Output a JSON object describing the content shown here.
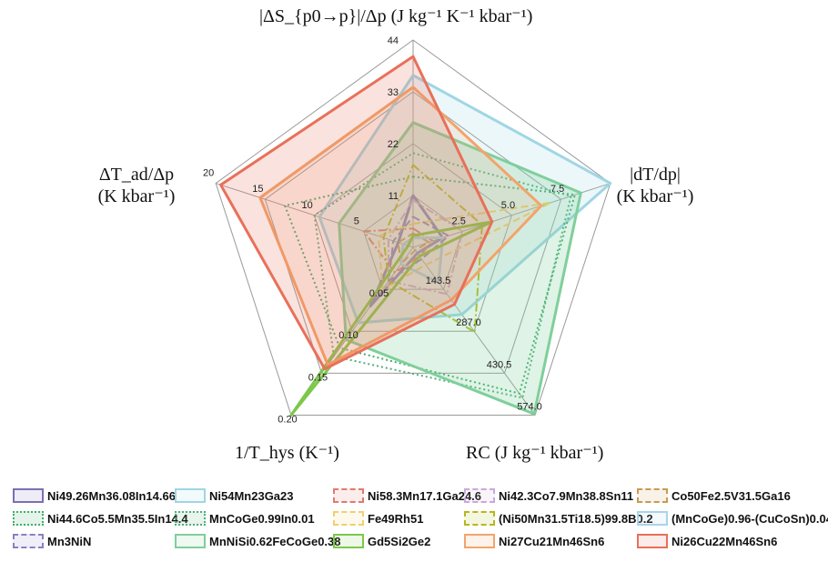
{
  "chart_data": {
    "type": "radar",
    "axes": [
      {
        "key": "dS",
        "label": "|ΔS_{p0→p}|/Δp",
        "unit": "(J kg⁻¹ K⁻¹ kbar⁻¹)",
        "max": 44,
        "ticks": [
          "11",
          "22",
          "33",
          "44"
        ]
      },
      {
        "key": "dTdp",
        "label": "|dT/dp|",
        "unit": "(K kbar⁻¹)",
        "max": 10,
        "ticks": [
          "2.5",
          "5.0",
          "7.5",
          ""
        ]
      },
      {
        "key": "RC",
        "label": "RC",
        "unit": "(J kg⁻¹ kbar⁻¹)",
        "max": 574,
        "ticks": [
          "143.5",
          "287.0",
          "430.5",
          "574.0"
        ]
      },
      {
        "key": "Thys",
        "label": "1/T_hys",
        "unit": "(K⁻¹)",
        "max": 0.2,
        "ticks": [
          "0.05",
          "0.10",
          "0.15",
          "0.20"
        ]
      },
      {
        "key": "dTad",
        "label": "ΔT_ad/Δp",
        "unit": "(K kbar⁻¹)",
        "max": 20,
        "ticks": [
          "5",
          "10",
          "15",
          "20"
        ]
      }
    ],
    "series": [
      {
        "name": "Ni49.26Mn36.08In14.66",
        "values": [
          11,
          1.5,
          20,
          0.07,
          1.5
        ],
        "color": "#7c6fb5",
        "dash": "solid",
        "fill": 0
      },
      {
        "name": "Ni54Mn23Ga23",
        "values": [
          36.5,
          10.0,
          230,
          0.09,
          9.5
        ],
        "color": "#9fd6e4",
        "dash": "solid",
        "fill": 0.2
      },
      {
        "name": "Ni58.3Mn17.1Ga24.6",
        "values": [
          4,
          1.0,
          30,
          0.03,
          5
        ],
        "color": "#e07a6e",
        "dash": "dashdot",
        "fill": 0
      },
      {
        "name": "Ni42.3Co7.9Mn38.8Sn11",
        "values": [
          10,
          2.5,
          160,
          0.04,
          2.5
        ],
        "color": "#c9a9d9",
        "dash": "dashdot",
        "fill": 0
      },
      {
        "name": "Co50Fe2.5V31.5Ga16",
        "values": [
          3,
          0.8,
          10,
          0.02,
          1.5
        ],
        "color": "#c99a50",
        "dash": "dashed",
        "fill": 0
      },
      {
        "name": "Ni44.6Co5.5Mn35.5In14.4",
        "values": [
          15,
          8.2,
          500,
          0.12,
          13
        ],
        "color": "#3fae6a",
        "dash": "dotted",
        "fill": 0
      },
      {
        "name": "MnCoGe0.99In0.01",
        "values": [
          20,
          8.0,
          515,
          0.13,
          10
        ],
        "color": "#4fb07a",
        "dash": "dotted",
        "fill": 0
      },
      {
        "name": "Fe49Rh51",
        "values": [
          5,
          7.0,
          60,
          0.05,
          3.5
        ],
        "color": "#f0d070",
        "dash": "dashed",
        "fill": 0
      },
      {
        "name": "(Ni50Mn31.5Ti18.5)99.8B0.2",
        "values": [
          17.5,
          3.5,
          290,
          0.04,
          3
        ],
        "color": "#b5b81a",
        "dash": "dashdot",
        "fill": 0
      },
      {
        "name": "(MnCoGe)0.96-(CuCoSn)0.04",
        "values": [
          2,
          1.5,
          120,
          0.02,
          1.0
        ],
        "color": "#a9d4ea",
        "dash": "solid",
        "fill": 0.1
      },
      {
        "name": "Mn3NiN",
        "values": [
          6.5,
          1.8,
          40,
          0.04,
          2.0
        ],
        "color": "#8c80c0",
        "dash": "dashed",
        "fill": 0
      },
      {
        "name": "MnNiSi0.62FeCoGe0.38",
        "values": [
          26.5,
          8.5,
          570,
          0.11,
          7.5
        ],
        "color": "#7fcf9a",
        "dash": "solid",
        "fill": 0.25
      },
      {
        "name": "Gd5Si2Ge2",
        "values": [
          2.5,
          4.0,
          30,
          0.2,
          0.5
        ],
        "color": "#7cc84a",
        "dash": "solid",
        "fill": 0
      },
      {
        "name": "Ni27Cu21Mn46Sn6",
        "values": [
          34,
          6.5,
          180,
          0.14,
          15.5
        ],
        "color": "#f3a46a",
        "dash": "solid",
        "fill": 0.15
      },
      {
        "name": "Ni26Cu22Mn46Sn6",
        "values": [
          40.5,
          4.0,
          195,
          0.145,
          19.5
        ],
        "color": "#e8705a",
        "dash": "solid",
        "fill": 0.2
      }
    ]
  },
  "legend": {
    "items": [
      {
        "name": "Ni49.26Mn36.08In14.66",
        "color": "#7c6fb5",
        "style": "solid"
      },
      {
        "name": "Ni54Mn23Ga23",
        "color": "#9fd6e4",
        "style": "solid"
      },
      {
        "name": "Ni58.3Mn17.1Ga24.6",
        "color": "#e07a6e",
        "style": "dashed"
      },
      {
        "name": "Ni42.3Co7.9Mn38.8Sn11",
        "color": "#c9a9d9",
        "style": "dashed"
      },
      {
        "name": "Co50Fe2.5V31.5Ga16",
        "color": "#c99a50",
        "style": "dashed"
      },
      {
        "name": "Ni44.6Co5.5Mn35.5In14.4",
        "color": "#3fae6a",
        "style": "dotted"
      },
      {
        "name": "MnCoGe0.99In0.01",
        "color": "#4fb07a",
        "style": "dotted"
      },
      {
        "name": "Fe49Rh51",
        "color": "#f0d070",
        "style": "dashed"
      },
      {
        "name": "(Ni50Mn31.5Ti18.5)99.8B0.2",
        "color": "#b5b81a",
        "style": "dashed"
      },
      {
        "name": "(MnCoGe)0.96-(CuCoSn)0.04",
        "color": "#a9d4ea",
        "style": "solid"
      },
      {
        "name": "Mn3NiN",
        "color": "#8c80c0",
        "style": "dashed"
      },
      {
        "name": "MnNiSi0.62FeCoGe0.38",
        "color": "#7fcf9a",
        "style": "solid"
      },
      {
        "name": "Gd5Si2Ge2",
        "color": "#7cc84a",
        "style": "solid"
      },
      {
        "name": "Ni27Cu21Mn46Sn6",
        "color": "#f3a46a",
        "style": "solid"
      },
      {
        "name": "Ni26Cu22Mn46Sn6",
        "color": "#e8705a",
        "style": "solid"
      }
    ]
  }
}
